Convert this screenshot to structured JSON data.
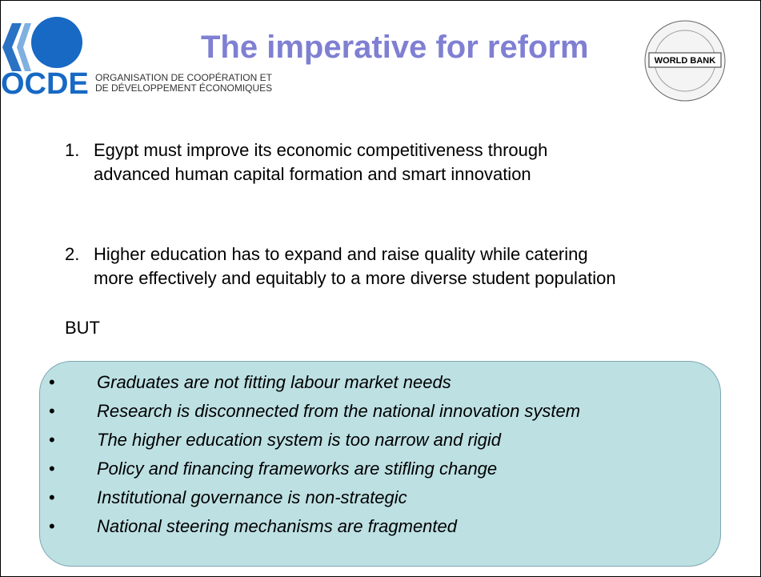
{
  "header": {
    "title": "The imperative for reform",
    "ocde_logo": "OCDE",
    "ocde_line1": "ORGANISATION DE COOPÉRATION ET",
    "ocde_line2": "DE DÉVELOPPEMENT ÉCONOMIQUES",
    "wb_logo": "WORLD BANK"
  },
  "points": [
    {
      "num": "1.",
      "lines": [
        "Egypt must improve its economic competitiveness through",
        "advanced human capital formation and smart innovation"
      ]
    },
    {
      "num": "2.",
      "lines": [
        "Higher education has to expand and raise quality while catering",
        "more effectively and equitably to a more diverse student population"
      ]
    }
  ],
  "but": "BUT",
  "bullets": [
    "Graduates are not fitting labour market needs",
    "Research is disconnected from the national innovation system",
    "The higher education system is too narrow and rigid",
    "Policy and financing frameworks are stifling change",
    "Institutional governance is non-strategic",
    "National steering mechanisms are fragmented"
  ]
}
